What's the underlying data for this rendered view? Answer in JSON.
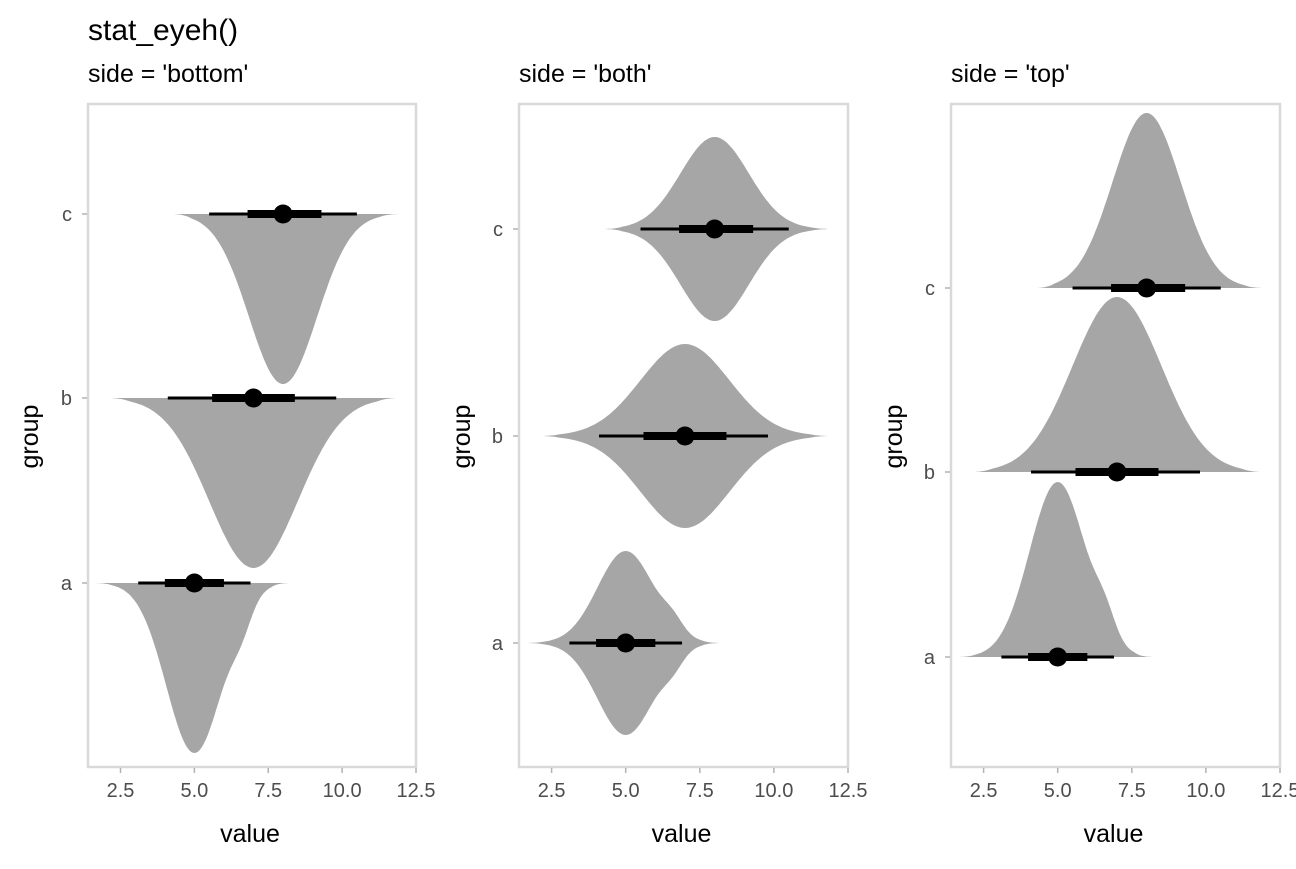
{
  "title": "stat_eyeh()",
  "colors": {
    "density_fill": "#a6a6a6",
    "interval": "#000000",
    "panel_border": "#d9d9d9",
    "tick_label": "#4d4d4d"
  },
  "chart_data": [
    {
      "type": "density-interval",
      "subtitle": "side = 'bottom'",
      "side": "bottom",
      "xlabel": "value",
      "ylabel": "group",
      "xlim": [
        1.4,
        12.5
      ],
      "xticks": [
        2.5,
        5.0,
        7.5,
        10.0,
        12.5
      ],
      "xtick_labels": [
        "2.5",
        "5.0",
        "7.5",
        "10.0",
        "12.5"
      ],
      "groups": [
        "a",
        "b",
        "c"
      ],
      "series": [
        {
          "name": "a",
          "median": 5.0,
          "interval_66": [
            4.0,
            6.0
          ],
          "interval_95": [
            3.1,
            6.9
          ],
          "density_range": [
            1.6,
            8.2
          ],
          "mode": 5.0,
          "spread": 0.95,
          "shoulder": 6.6
        },
        {
          "name": "b",
          "median": 7.0,
          "interval_66": [
            5.6,
            8.4
          ],
          "interval_95": [
            4.1,
            9.8
          ],
          "density_range": [
            2.2,
            11.8
          ],
          "mode": 7.0,
          "spread": 1.5
        },
        {
          "name": "c",
          "median": 8.0,
          "interval_66": [
            6.8,
            9.3
          ],
          "interval_95": [
            5.5,
            10.5
          ],
          "density_range": [
            4.3,
            11.9
          ],
          "mode": 8.0,
          "spread": 1.15
        }
      ]
    },
    {
      "type": "density-interval",
      "subtitle": "side = 'both'",
      "side": "both",
      "xlabel": "value",
      "ylabel": "group",
      "xlim": [
        1.4,
        12.5
      ],
      "xticks": [
        2.5,
        5.0,
        7.5,
        10.0,
        12.5
      ],
      "xtick_labels": [
        "2.5",
        "5.0",
        "7.5",
        "10.0",
        "12.5"
      ],
      "groups": [
        "a",
        "b",
        "c"
      ],
      "series": [
        {
          "name": "a",
          "median": 5.0,
          "interval_66": [
            4.0,
            6.0
          ],
          "interval_95": [
            3.1,
            6.9
          ],
          "density_range": [
            1.6,
            8.2
          ],
          "mode": 5.0,
          "spread": 0.95,
          "shoulder": 6.6
        },
        {
          "name": "b",
          "median": 7.0,
          "interval_66": [
            5.6,
            8.4
          ],
          "interval_95": [
            4.1,
            9.8
          ],
          "density_range": [
            2.2,
            11.8
          ],
          "mode": 7.0,
          "spread": 1.5
        },
        {
          "name": "c",
          "median": 8.0,
          "interval_66": [
            6.8,
            9.3
          ],
          "interval_95": [
            5.5,
            10.5
          ],
          "density_range": [
            4.3,
            11.9
          ],
          "mode": 8.0,
          "spread": 1.15
        }
      ]
    },
    {
      "type": "density-interval",
      "subtitle": "side = 'top'",
      "side": "top",
      "xlabel": "value",
      "ylabel": "group",
      "xlim": [
        1.4,
        12.5
      ],
      "xticks": [
        2.5,
        5.0,
        7.5,
        10.0,
        12.5
      ],
      "xtick_labels": [
        "2.5",
        "5.0",
        "7.5",
        "10.0",
        "12.5"
      ],
      "groups": [
        "a",
        "b",
        "c"
      ],
      "series": [
        {
          "name": "a",
          "median": 5.0,
          "interval_66": [
            4.0,
            6.0
          ],
          "interval_95": [
            3.1,
            6.9
          ],
          "density_range": [
            1.6,
            8.2
          ],
          "mode": 5.0,
          "spread": 0.95,
          "shoulder": 6.6
        },
        {
          "name": "b",
          "median": 7.0,
          "interval_66": [
            5.6,
            8.4
          ],
          "interval_95": [
            4.1,
            9.8
          ],
          "density_range": [
            2.2,
            11.8
          ],
          "mode": 7.0,
          "spread": 1.5
        },
        {
          "name": "c",
          "median": 8.0,
          "interval_66": [
            6.8,
            9.3
          ],
          "interval_95": [
            5.5,
            10.5
          ],
          "density_range": [
            4.3,
            11.9
          ],
          "mode": 8.0,
          "spread": 1.15
        }
      ]
    }
  ]
}
